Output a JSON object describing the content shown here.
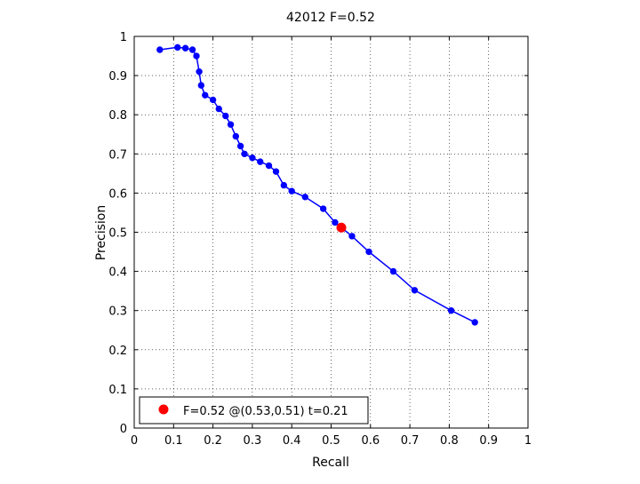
{
  "chart_data": {
    "type": "line",
    "title": "42012 F=0.52",
    "xlabel": "Recall",
    "ylabel": "Precision",
    "xlim": [
      0,
      1
    ],
    "ylim": [
      0,
      1
    ],
    "xticks": [
      "0",
      "0.1",
      "0.2",
      "0.3",
      "0.4",
      "0.5",
      "0.6",
      "0.7",
      "0.8",
      "0.9",
      "1"
    ],
    "yticks": [
      "0",
      "0.1",
      "0.2",
      "0.3",
      "0.4",
      "0.5",
      "0.6",
      "0.7",
      "0.8",
      "0.9",
      "1"
    ],
    "grid": true,
    "legend_position": "bottom-left",
    "series": [
      {
        "color": "#0000ff",
        "x": [
          0.065,
          0.11,
          0.13,
          0.148,
          0.158,
          0.165,
          0.17,
          0.18,
          0.2,
          0.215,
          0.232,
          0.245,
          0.258,
          0.27,
          0.28,
          0.3,
          0.32,
          0.342,
          0.36,
          0.38,
          0.4,
          0.434,
          0.48,
          0.51,
          0.553,
          0.596,
          0.658,
          0.712,
          0.805,
          0.865
        ],
        "y": [
          0.966,
          0.972,
          0.97,
          0.966,
          0.95,
          0.91,
          0.875,
          0.85,
          0.838,
          0.815,
          0.797,
          0.775,
          0.745,
          0.72,
          0.7,
          0.69,
          0.68,
          0.67,
          0.655,
          0.62,
          0.605,
          0.59,
          0.56,
          0.525,
          0.49,
          0.45,
          0.4,
          0.352,
          0.3,
          0.27
        ]
      }
    ],
    "best_point": {
      "color": "#ff0000",
      "x": 0.526,
      "y": 0.512
    },
    "legend": {
      "label": "F=0.52 @(0.53,0.51) t=0.21",
      "marker_color": "#ff0000"
    }
  }
}
